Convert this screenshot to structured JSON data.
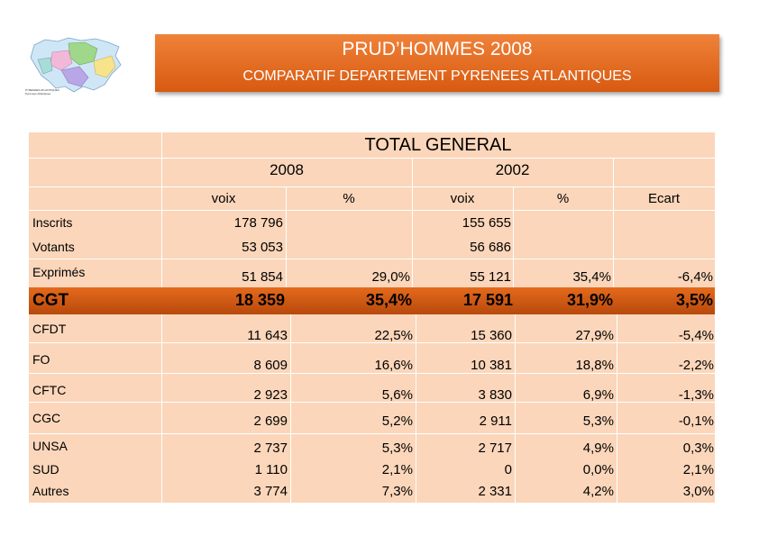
{
  "header": {
    "title": "PRUD’HOMMES 2008",
    "subtitle": "COMPARATIF DEPARTEMENT PYRENEES ATLANTIQUES"
  },
  "map": {
    "caption_line1": "PYRENEES ATLANTIQUES",
    "caption_line2": "Pyrenees Atlantiques"
  },
  "table": {
    "title": "TOTAL GENERAL",
    "year_2008": "2008",
    "year_2002": "2002",
    "col_voix_2008": "voix",
    "col_pct_2008": "%",
    "col_voix_2002": "voix",
    "col_pct_2002": "%",
    "col_ecart": "Ecart",
    "inscrits": {
      "label": "Inscrits",
      "v2008": "178 796",
      "v2002": "155 655"
    },
    "votants": {
      "label": "Votants",
      "v2008": "53 053",
      "v2002": "56 686"
    },
    "exprimes": {
      "label": "Exprimés",
      "v2008": "51 854",
      "p2008": "29,0%",
      "v2002": "55 121",
      "p2002": "35,4%",
      "ecart": "-6,4%"
    },
    "cgt": {
      "label": "CGT",
      "v2008": "18 359",
      "p2008": "35,4%",
      "v2002": "17 591",
      "p2002": "31,9%",
      "ecart": "3,5%"
    },
    "cfdt": {
      "label": "CFDT",
      "v2008": "11 643",
      "p2008": "22,5%",
      "v2002": "15 360",
      "p2002": "27,9%",
      "ecart": "-5,4%"
    },
    "fo": {
      "label": "FO",
      "v2008": "8 609",
      "p2008": "16,6%",
      "v2002": "10 381",
      "p2002": "18,8%",
      "ecart": "-2,2%"
    },
    "cftc": {
      "label": "CFTC",
      "v2008": "2 923",
      "p2008": "5,6%",
      "v2002": "3 830",
      "p2002": "6,9%",
      "ecart": "-1,3%"
    },
    "cgc": {
      "label": "CGC",
      "v2008": "2 699",
      "p2008": "5,2%",
      "v2002": "2 911",
      "p2002": "5,3%",
      "ecart": "-0,1%"
    },
    "unsa": {
      "label": "UNSA",
      "v2008": "2 737",
      "p2008": "5,3%",
      "v2002": "2 717",
      "p2002": "4,9%",
      "ecart": "0,3%"
    },
    "sud": {
      "label": "SUD",
      "v2008": "1 110",
      "p2008": "2,1%",
      "v2002": "0",
      "p2002": "0,0%",
      "ecart": "2,1%"
    },
    "autres": {
      "label": "Autres",
      "v2008": "3 774",
      "p2008": "7,3%",
      "v2002": "2 331",
      "p2002": "4,2%",
      "ecart": "3,0%"
    }
  }
}
